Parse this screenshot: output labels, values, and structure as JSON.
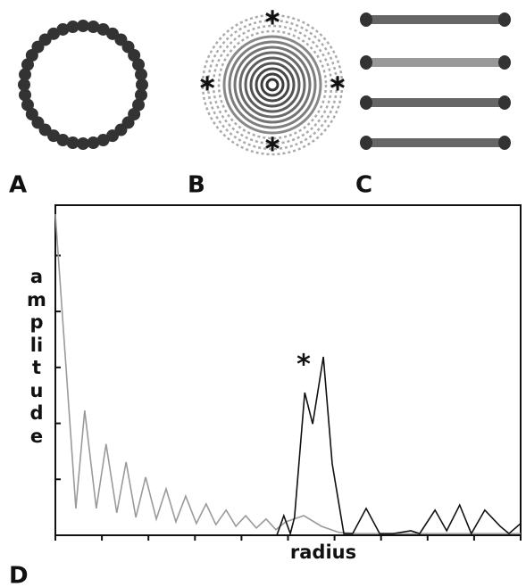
{
  "panel_labels": {
    "a": "A",
    "b": "B",
    "c": "C",
    "d": "D"
  },
  "chart_data": {
    "type": "line",
    "xlabel": "radius",
    "ylabel": "amplitude",
    "annotation": "*",
    "xlim": [
      0,
      100
    ],
    "xticks": [
      0,
      10,
      20,
      30,
      40,
      50,
      60,
      70,
      80,
      90,
      100
    ],
    "ylim": [
      0,
      5.9
    ],
    "yticks": [
      0,
      1,
      2,
      3,
      4,
      5
    ],
    "series": [
      {
        "color": "#9a9a9a",
        "x": [
          0,
          4.4,
          6.3,
          8.8,
          10.9,
          13.2,
          15.2,
          17.3,
          19.4,
          21.7,
          23.8,
          25.9,
          28.0,
          30.3,
          32.4,
          34.5,
          36.7,
          38.8,
          40.9,
          43.2,
          45.3,
          47.4,
          49.5,
          53.4,
          57.2,
          61.0,
          64.9,
          100
        ],
        "values": [
          5.74,
          0.48,
          2.23,
          0.48,
          1.63,
          0.4,
          1.31,
          0.32,
          1.04,
          0.29,
          0.83,
          0.24,
          0.7,
          0.21,
          0.56,
          0.19,
          0.45,
          0.16,
          0.35,
          0.13,
          0.29,
          0.1,
          0.24,
          0.35,
          0.16,
          0.05,
          0.03,
          0.03
        ]
      },
      {
        "color": "#111111",
        "x": [
          47.6,
          49.1,
          50.5,
          51.4,
          53.6,
          55.3,
          57.6,
          59.5,
          62.0,
          63.9,
          66.8,
          69.7,
          72.6,
          76.4,
          78.3,
          81.6,
          84.1,
          86.9,
          89.4,
          92.3,
          95.6,
          97.5,
          100
        ],
        "values": [
          0,
          0.35,
          0.03,
          0.32,
          2.55,
          1.99,
          3.19,
          1.28,
          0.03,
          0.03,
          0.48,
          0.03,
          0.03,
          0.08,
          0.03,
          0.45,
          0.08,
          0.54,
          0.03,
          0.45,
          0.16,
          0.03,
          0.21
        ]
      }
    ]
  }
}
